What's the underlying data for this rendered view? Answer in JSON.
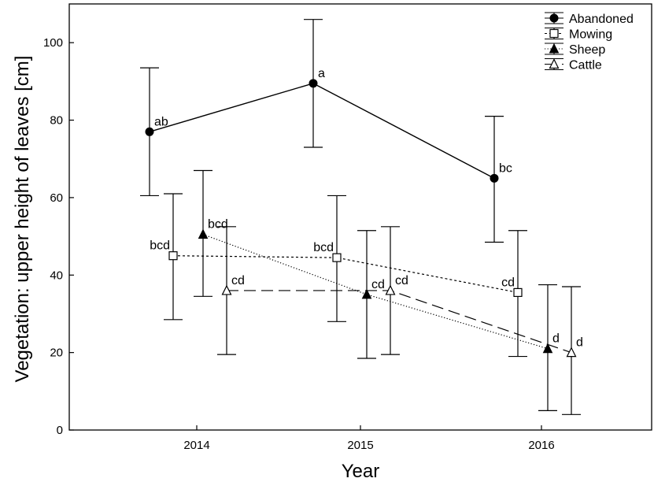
{
  "chart_data": {
    "type": "line",
    "title": "",
    "xlabel": "Year",
    "ylabel": "Vegetation: upper height of leaves [cm]",
    "categories": [
      "2014",
      "2015",
      "2016"
    ],
    "ylim": [
      0,
      110
    ],
    "y_ticks": [
      "0",
      "20",
      "40",
      "60",
      "80",
      "100"
    ],
    "legend_position": "top-right",
    "grid": false,
    "series": [
      {
        "name": "Abandoned",
        "marker": "filled-circle",
        "line_style": "solid",
        "values": [
          77,
          89.5,
          65
        ],
        "error_low": [
          60.5,
          73,
          48.5
        ],
        "error_high": [
          93.5,
          106,
          81
        ],
        "labels": [
          "ab",
          "a",
          "bc"
        ]
      },
      {
        "name": "Mowing",
        "marker": "open-square",
        "line_style": "dotted",
        "values": [
          45,
          44.5,
          35.5
        ],
        "error_low": [
          28.5,
          28,
          19
        ],
        "error_high": [
          61,
          60.5,
          51.5
        ],
        "labels": [
          "bcd",
          "bcd",
          "cd"
        ]
      },
      {
        "name": "Sheep",
        "marker": "filled-triangle",
        "line_style": "fine-dotted",
        "values": [
          50.5,
          35,
          21
        ],
        "error_low": [
          34.5,
          18.5,
          5
        ],
        "error_high": [
          67,
          51.5,
          37.5
        ],
        "labels": [
          "bcd",
          "cd",
          "d"
        ]
      },
      {
        "name": "Cattle",
        "marker": "open-triangle",
        "line_style": "dashed",
        "values": [
          36,
          36,
          20
        ],
        "error_low": [
          19.5,
          19.5,
          4
        ],
        "error_high": [
          52.5,
          52.5,
          37
        ],
        "labels": [
          "cd",
          "cd",
          "d"
        ]
      }
    ]
  }
}
